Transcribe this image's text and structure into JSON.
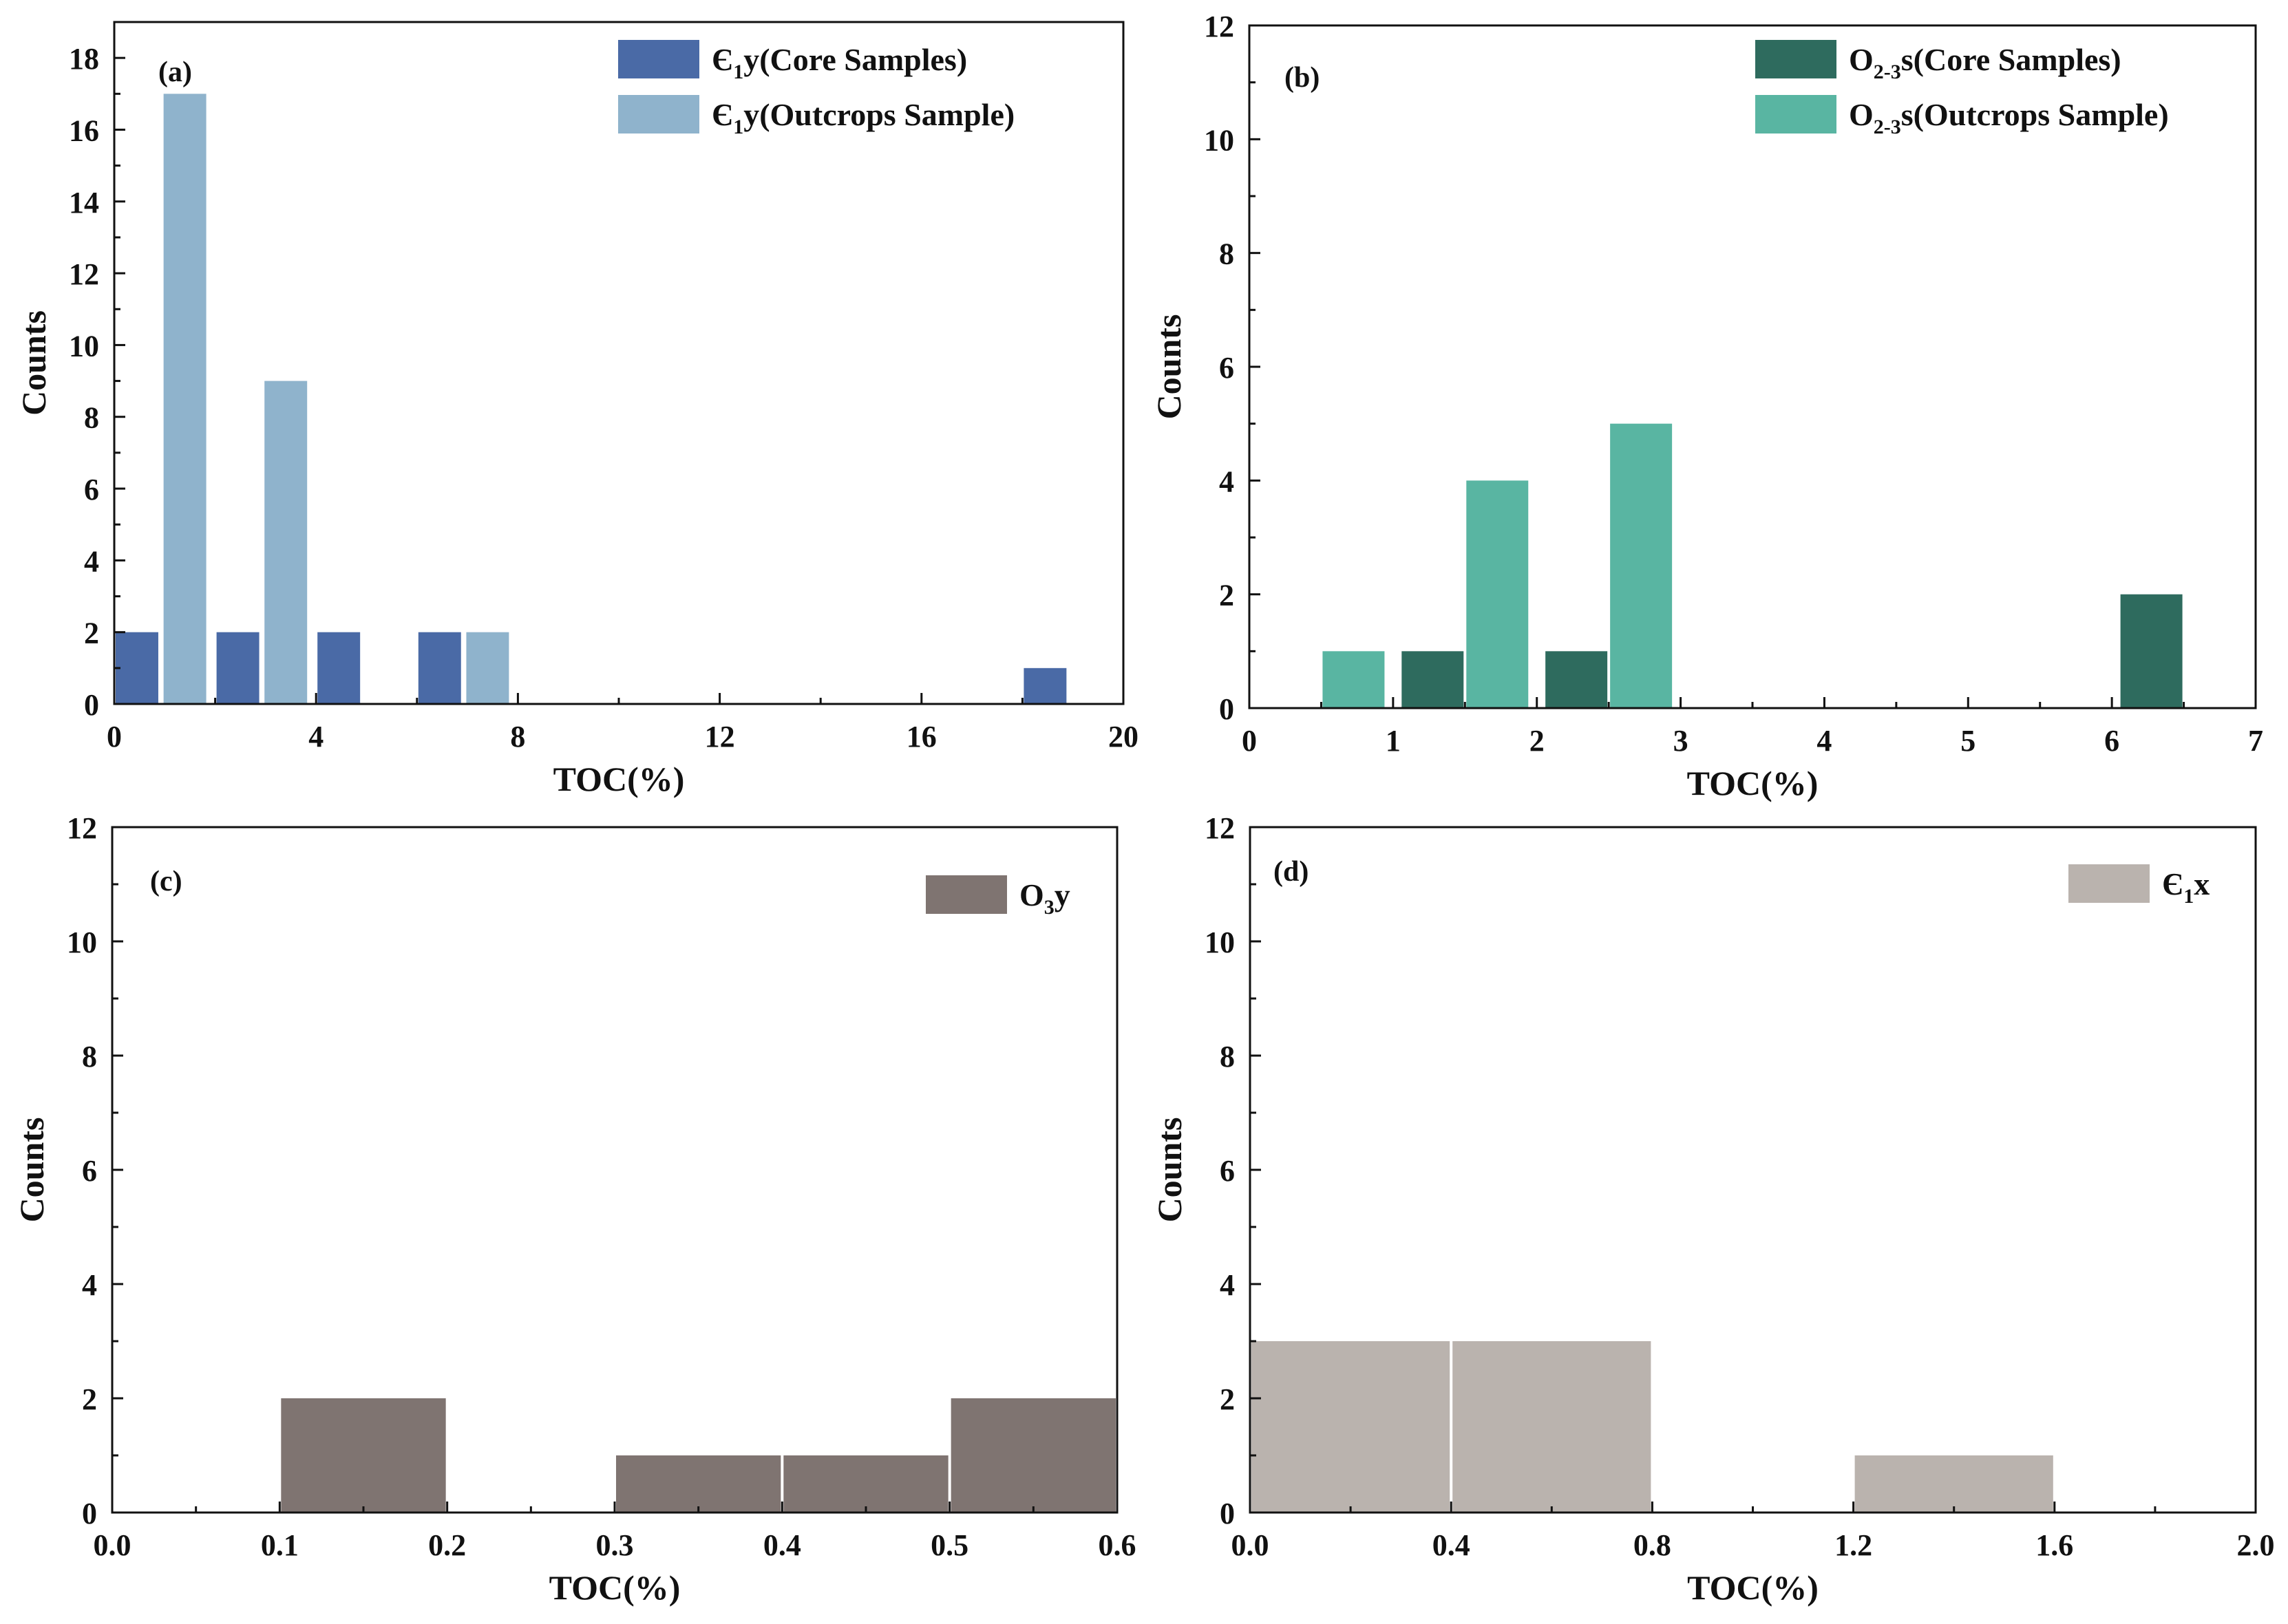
{
  "chart_data": [
    {
      "id": "a",
      "type": "bar",
      "panel_label": "(a)",
      "xlabel": "TOC(%)",
      "ylabel": "Counts",
      "xlim": [
        0,
        20
      ],
      "ylim": [
        0,
        19
      ],
      "xticks": [
        0,
        4,
        8,
        12,
        16,
        20
      ],
      "xtick_labels": [
        "0",
        "4",
        "8",
        "12",
        "16",
        "20"
      ],
      "x_minor_ticks": [
        2,
        6,
        10,
        14,
        18
      ],
      "yticks": [
        0,
        2,
        4,
        6,
        8,
        10,
        12,
        14,
        16,
        18
      ],
      "ytick_labels": [
        "0",
        "2",
        "4",
        "6",
        "8",
        "10",
        "12",
        "14",
        "16",
        "18"
      ],
      "series": [
        {
          "name": "Є1y(Core Samples)",
          "legend": {
            "main": "Є",
            "sub": "1",
            "rest": "y(Core Samples)"
          },
          "color": "#4a6aa6",
          "bars": [
            {
              "x0": 0,
              "x1": 0.9,
              "value": 2
            },
            {
              "x0": 2,
              "x1": 2.9,
              "value": 2
            },
            {
              "x0": 4,
              "x1": 4.9,
              "value": 2
            },
            {
              "x0": 6,
              "x1": 6.9,
              "value": 2
            },
            {
              "x0": 18,
              "x1": 18.9,
              "value": 1
            }
          ]
        },
        {
          "name": "Є1y(Outcrops Sample)",
          "legend": {
            "main": "Є",
            "sub": "1",
            "rest": "y(Outcrops Sample)"
          },
          "color": "#8fb3cc",
          "bars": [
            {
              "x0": 0.95,
              "x1": 1.85,
              "value": 17
            },
            {
              "x0": 2.95,
              "x1": 3.85,
              "value": 9
            },
            {
              "x0": 6.95,
              "x1": 7.85,
              "value": 2
            }
          ]
        }
      ]
    },
    {
      "id": "b",
      "type": "bar",
      "panel_label": "(b)",
      "xlabel": "TOC(%)",
      "ylabel": "Counts",
      "xlim": [
        0,
        7
      ],
      "ylim": [
        0,
        12
      ],
      "xticks": [
        0,
        1,
        2,
        3,
        4,
        5,
        6,
        7
      ],
      "xtick_labels": [
        "0",
        "1",
        "2",
        "3",
        "4",
        "5",
        "6",
        "7"
      ],
      "x_minor_ticks": [
        0.5,
        1.5,
        2.5,
        3.5,
        4.5,
        5.5,
        6.5
      ],
      "yticks": [
        0,
        2,
        4,
        6,
        8,
        10,
        12
      ],
      "ytick_labels": [
        "0",
        "2",
        "4",
        "6",
        "8",
        "10",
        "12"
      ],
      "series": [
        {
          "name": "O2-3s(Core Samples)",
          "legend": {
            "main": "O",
            "sub": "2-3",
            "rest": "s(Core Samples)"
          },
          "color": "#2e6b5e",
          "bars": [
            {
              "x0": 1.05,
              "x1": 1.5,
              "value": 1
            },
            {
              "x0": 2.05,
              "x1": 2.5,
              "value": 1
            },
            {
              "x0": 6.05,
              "x1": 6.5,
              "value": 2
            }
          ]
        },
        {
          "name": "O2-3s(Outcrops Sample)",
          "legend": {
            "main": "O",
            "sub": "2-3",
            "rest": "s(Outcrops Sample)"
          },
          "color": "#59b5a2",
          "bars": [
            {
              "x0": 0.5,
              "x1": 0.95,
              "value": 1
            },
            {
              "x0": 1.5,
              "x1": 1.95,
              "value": 4
            },
            {
              "x0": 2.5,
              "x1": 2.95,
              "value": 5
            }
          ]
        }
      ]
    },
    {
      "id": "c",
      "type": "bar",
      "panel_label": "(c)",
      "xlabel": "TOC(%)",
      "ylabel": "Counts",
      "xlim": [
        0,
        0.6
      ],
      "ylim": [
        0,
        12
      ],
      "xticks": [
        0,
        0.1,
        0.2,
        0.3,
        0.4,
        0.5,
        0.6
      ],
      "xtick_labels": [
        "0.0",
        "0.1",
        "0.2",
        "0.3",
        "0.4",
        "0.5",
        "0.6"
      ],
      "x_minor_ticks": [
        0.05,
        0.15,
        0.25,
        0.35,
        0.45,
        0.55
      ],
      "yticks": [
        0,
        2,
        4,
        6,
        8,
        10,
        12
      ],
      "ytick_labels": [
        "0",
        "2",
        "4",
        "6",
        "8",
        "10",
        "12"
      ],
      "series": [
        {
          "name": "O3y",
          "legend": {
            "main": "O",
            "sub": "3",
            "rest": "y"
          },
          "color": "#7f7471",
          "bars": [
            {
              "x0": 0.1,
              "x1": 0.2,
              "value": 2
            },
            {
              "x0": 0.3,
              "x1": 0.4,
              "value": 1
            },
            {
              "x0": 0.4,
              "x1": 0.5,
              "value": 1
            },
            {
              "x0": 0.5,
              "x1": 0.6,
              "value": 2
            }
          ]
        }
      ]
    },
    {
      "id": "d",
      "type": "bar",
      "panel_label": "(d)",
      "xlabel": "TOC(%)",
      "ylabel": "Counts",
      "xlim": [
        0,
        2.0
      ],
      "ylim": [
        0,
        12
      ],
      "xticks": [
        0,
        0.4,
        0.8,
        1.2,
        1.6,
        2.0
      ],
      "xtick_labels": [
        "0.0",
        "0.4",
        "0.8",
        "1.2",
        "1.6",
        "2.0"
      ],
      "x_minor_ticks": [
        0.2,
        0.6,
        1.0,
        1.4,
        1.8
      ],
      "yticks": [
        0,
        2,
        4,
        6,
        8,
        10,
        12
      ],
      "ytick_labels": [
        "0",
        "2",
        "4",
        "6",
        "8",
        "10",
        "12"
      ],
      "series": [
        {
          "name": "Є1x",
          "legend": {
            "main": "Є",
            "sub": "1",
            "rest": "x"
          },
          "color": "#bab3ae",
          "bars": [
            {
              "x0": 0.0,
              "x1": 0.4,
              "value": 3
            },
            {
              "x0": 0.4,
              "x1": 0.8,
              "value": 3
            },
            {
              "x0": 1.2,
              "x1": 1.6,
              "value": 1
            }
          ]
        }
      ]
    }
  ]
}
